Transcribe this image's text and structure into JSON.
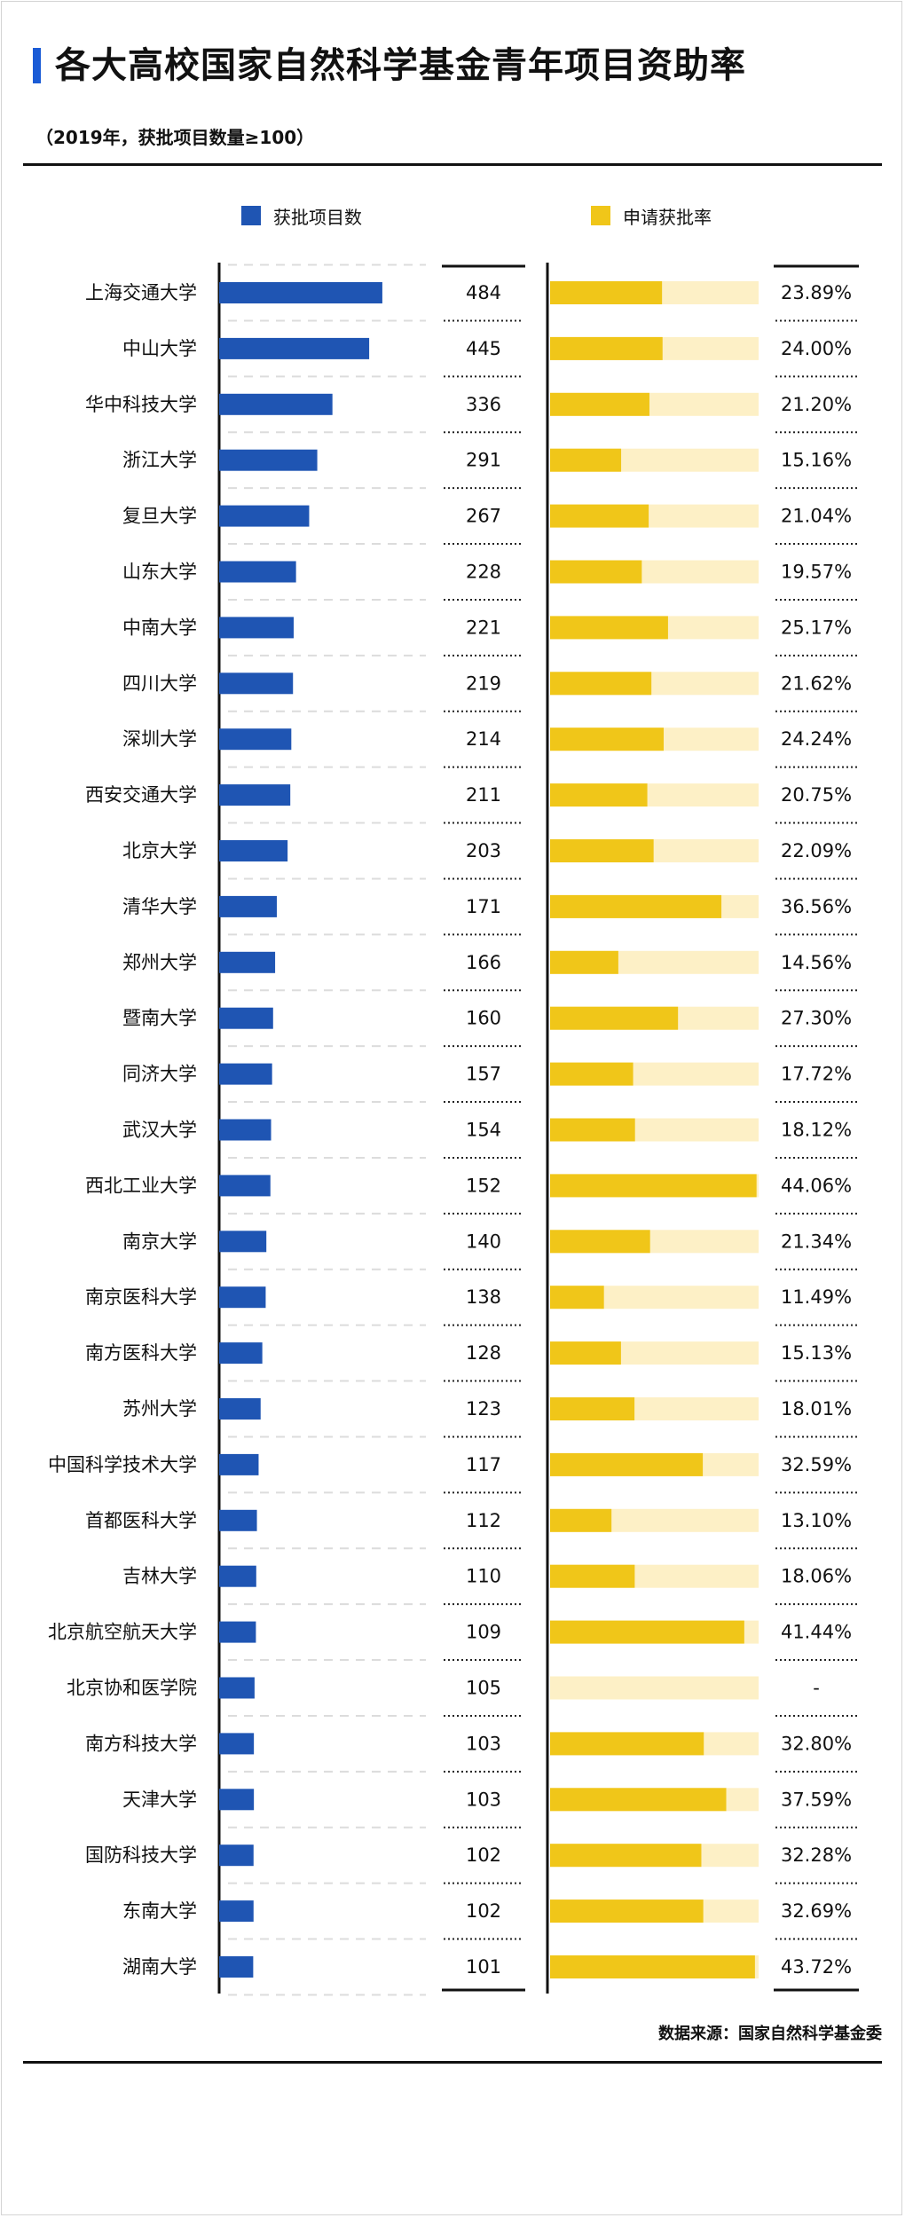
{
  "header": {
    "title": "各大高校国家自然科学基金青年项目资助率",
    "subtitle": "（2019年，获批项目数量≥100）"
  },
  "legend": {
    "count_label": "获批项目数",
    "rate_label": "申请获批率"
  },
  "colors": {
    "count_bar": "#1f55b3",
    "rate_bar": "#f0c619",
    "rate_track": "#fdf0c6",
    "accent": "#1a5bd6"
  },
  "source_text": "数据来源：国家自然科学基金委",
  "chart_data": [
    {
      "type": "bar",
      "orientation": "horizontal",
      "series_name": "获批项目数",
      "categories": [
        "上海交通大学",
        "中山大学",
        "华中科技大学",
        "浙江大学",
        "复旦大学",
        "山东大学",
        "中南大学",
        "四川大学",
        "深圳大学",
        "西安交通大学",
        "北京大学",
        "清华大学",
        "郑州大学",
        "暨南大学",
        "同济大学",
        "武汉大学",
        "西北工业大学",
        "南京大学",
        "南京医科大学",
        "南方医科大学",
        "苏州大学",
        "中国科学技术大学",
        "首都医科大学",
        "吉林大学",
        "北京航空航天大学",
        "北京协和医学院",
        "南方科技大学",
        "天津大学",
        "国防科技大学",
        "东南大学",
        "湖南大学"
      ],
      "values": [
        484,
        445,
        336,
        291,
        267,
        228,
        221,
        219,
        214,
        211,
        203,
        171,
        166,
        160,
        157,
        154,
        152,
        140,
        138,
        128,
        123,
        117,
        112,
        110,
        109,
        105,
        103,
        103,
        102,
        102,
        101
      ],
      "value_labels": [
        "484",
        "445",
        "336",
        "291",
        "267",
        "228",
        "221",
        "219",
        "214",
        "211",
        "203",
        "171",
        "166",
        "160",
        "157",
        "154",
        "152",
        "140",
        "138",
        "128",
        "123",
        "117",
        "112",
        "110",
        "109",
        "105",
        "103",
        "103",
        "102",
        "102",
        "101"
      ],
      "xlim": [
        0,
        500
      ]
    },
    {
      "type": "bar",
      "orientation": "horizontal",
      "series_name": "申请获批率",
      "unit": "%",
      "categories": [
        "上海交通大学",
        "中山大学",
        "华中科技大学",
        "浙江大学",
        "复旦大学",
        "山东大学",
        "中南大学",
        "四川大学",
        "深圳大学",
        "西安交通大学",
        "北京大学",
        "清华大学",
        "郑州大学",
        "暨南大学",
        "同济大学",
        "武汉大学",
        "西北工业大学",
        "南京大学",
        "南京医科大学",
        "南方医科大学",
        "苏州大学",
        "中国科学技术大学",
        "首都医科大学",
        "吉林大学",
        "北京航空航天大学",
        "北京协和医学院",
        "南方科技大学",
        "天津大学",
        "国防科技大学",
        "东南大学",
        "湖南大学"
      ],
      "values": [
        23.89,
        24.0,
        21.2,
        15.16,
        21.04,
        19.57,
        25.17,
        21.62,
        24.24,
        20.75,
        22.09,
        36.56,
        14.56,
        27.3,
        17.72,
        18.12,
        44.06,
        21.34,
        11.49,
        15.13,
        18.01,
        32.59,
        13.1,
        18.06,
        41.44,
        null,
        32.8,
        37.59,
        32.28,
        32.69,
        43.72
      ],
      "value_labels": [
        "23.89%",
        "24.00%",
        "21.20%",
        "15.16%",
        "21.04%",
        "19.57%",
        "25.17%",
        "21.62%",
        "24.24%",
        "20.75%",
        "22.09%",
        "36.56%",
        "14.56%",
        "27.30%",
        "17.72%",
        "18.12%",
        "44.06%",
        "21.34%",
        "11.49%",
        "15.13%",
        "18.01%",
        "32.59%",
        "13.10%",
        "18.06%",
        "41.44%",
        "-",
        "32.80%",
        "37.59%",
        "32.28%",
        "32.69%",
        "43.72%"
      ],
      "xlim": [
        0,
        44.5
      ]
    }
  ]
}
